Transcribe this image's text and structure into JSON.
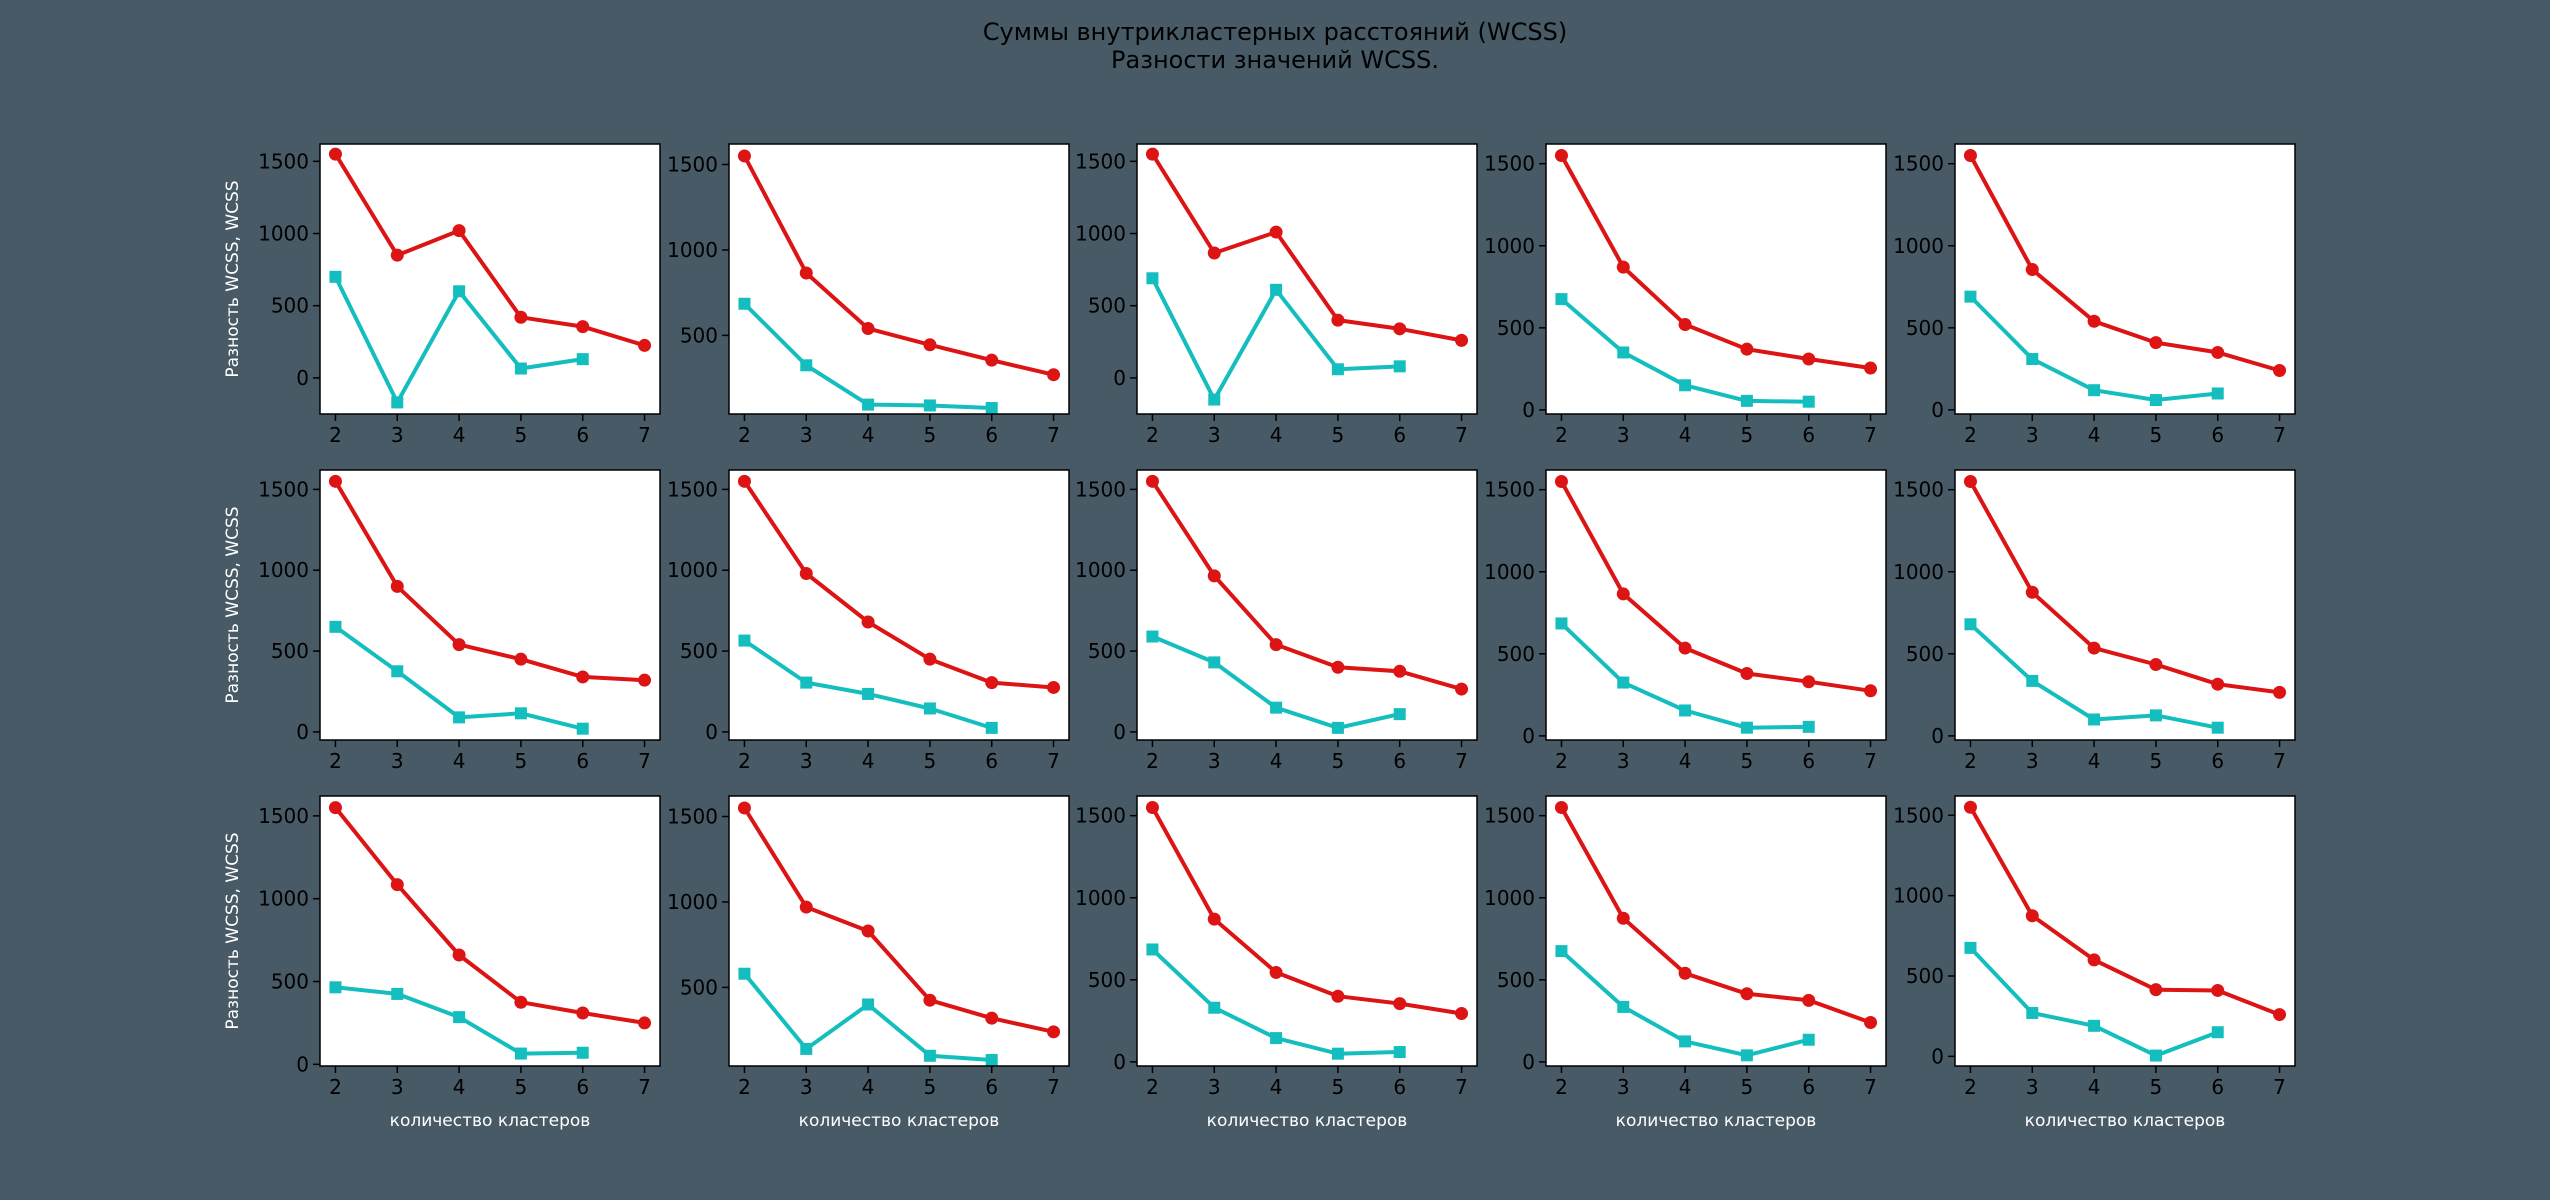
{
  "figure": {
    "title_line1": "Суммы внутрикластерных расстояний (WCSS)",
    "title_line2": "Разности значений WCSS.",
    "ylabel": "Разность WCSS, WCSS",
    "xlabel": "количество кластеров",
    "colors": {
      "background": "#475a66",
      "wcss": "#dc1414",
      "diff": "#14bebe"
    }
  },
  "chart_data": [
    {
      "type": "line",
      "x": [
        2,
        3,
        4,
        5,
        6,
        7
      ],
      "yticks": [
        0,
        500,
        1000,
        1500
      ],
      "ylim": [
        -250,
        1620
      ],
      "series": [
        {
          "values": [
            1550,
            850,
            1020,
            420,
            355,
            225
          ]
        },
        {
          "x": [
            2,
            3,
            4,
            5,
            6
          ],
          "values": [
            700,
            -170,
            600,
            65,
            130
          ]
        }
      ]
    },
    {
      "type": "line",
      "x": [
        2,
        3,
        4,
        5,
        6,
        7
      ],
      "yticks": [
        500,
        1000,
        1500
      ],
      "ylim": [
        40,
        1620
      ],
      "series": [
        {
          "values": [
            1550,
            865,
            540,
            445,
            355,
            270
          ]
        },
        {
          "x": [
            2,
            3,
            4,
            5,
            6
          ],
          "values": [
            685,
            325,
            95,
            90,
            75
          ]
        }
      ]
    },
    {
      "type": "line",
      "x": [
        2,
        3,
        4,
        5,
        6,
        7
      ],
      "yticks": [
        0,
        500,
        1000,
        1500
      ],
      "ylim": [
        -250,
        1620
      ],
      "series": [
        {
          "values": [
            1550,
            865,
            1010,
            400,
            340,
            260
          ]
        },
        {
          "x": [
            2,
            3,
            4,
            5,
            6
          ],
          "values": [
            690,
            -150,
            610,
            60,
            80
          ]
        }
      ]
    },
    {
      "type": "line",
      "x": [
        2,
        3,
        4,
        5,
        6,
        7
      ],
      "yticks": [
        0,
        500,
        1000,
        1500
      ],
      "ylim": [
        -25,
        1620
      ],
      "series": [
        {
          "values": [
            1550,
            870,
            520,
            370,
            310,
            255
          ]
        },
        {
          "x": [
            2,
            3,
            4,
            5,
            6
          ],
          "values": [
            675,
            350,
            150,
            55,
            50
          ]
        }
      ]
    },
    {
      "type": "line",
      "x": [
        2,
        3,
        4,
        5,
        6,
        7
      ],
      "yticks": [
        0,
        500,
        1000,
        1500
      ],
      "ylim": [
        -25,
        1620
      ],
      "series": [
        {
          "values": [
            1550,
            855,
            540,
            410,
            350,
            240
          ]
        },
        {
          "x": [
            2,
            3,
            4,
            5,
            6
          ],
          "values": [
            690,
            310,
            120,
            60,
            100
          ]
        }
      ]
    },
    {
      "type": "line",
      "x": [
        2,
        3,
        4,
        5,
        6,
        7
      ],
      "yticks": [
        0,
        500,
        1000,
        1500
      ],
      "ylim": [
        -50,
        1620
      ],
      "series": [
        {
          "values": [
            1550,
            900,
            540,
            450,
            340,
            320
          ]
        },
        {
          "x": [
            2,
            3,
            4,
            5,
            6
          ],
          "values": [
            650,
            375,
            90,
            115,
            20
          ]
        }
      ]
    },
    {
      "type": "line",
      "x": [
        2,
        3,
        4,
        5,
        6,
        7
      ],
      "yticks": [
        0,
        500,
        1000,
        1500
      ],
      "ylim": [
        -50,
        1620
      ],
      "series": [
        {
          "values": [
            1550,
            980,
            680,
            450,
            305,
            275
          ]
        },
        {
          "x": [
            2,
            3,
            4,
            5,
            6
          ],
          "values": [
            565,
            305,
            235,
            145,
            25
          ]
        }
      ]
    },
    {
      "type": "line",
      "x": [
        2,
        3,
        4,
        5,
        6,
        7
      ],
      "yticks": [
        0,
        500,
        1000,
        1500
      ],
      "ylim": [
        -50,
        1620
      ],
      "series": [
        {
          "values": [
            1550,
            965,
            540,
            400,
            375,
            265
          ]
        },
        {
          "x": [
            2,
            3,
            4,
            5,
            6
          ],
          "values": [
            590,
            430,
            150,
            25,
            110
          ]
        }
      ]
    },
    {
      "type": "line",
      "x": [
        2,
        3,
        4,
        5,
        6,
        7
      ],
      "yticks": [
        0,
        500,
        1000,
        1500
      ],
      "ylim": [
        -25,
        1620
      ],
      "series": [
        {
          "values": [
            1550,
            865,
            535,
            380,
            330,
            275
          ]
        },
        {
          "x": [
            2,
            3,
            4,
            5,
            6
          ],
          "values": [
            685,
            325,
            155,
            50,
            55
          ]
        }
      ]
    },
    {
      "type": "line",
      "x": [
        2,
        3,
        4,
        5,
        6,
        7
      ],
      "yticks": [
        0,
        500,
        1000,
        1500
      ],
      "ylim": [
        -25,
        1620
      ],
      "series": [
        {
          "values": [
            1550,
            875,
            535,
            435,
            315,
            265
          ]
        },
        {
          "x": [
            2,
            3,
            4,
            5,
            6
          ],
          "values": [
            680,
            335,
            100,
            125,
            50
          ]
        }
      ]
    },
    {
      "type": "line",
      "x": [
        2,
        3,
        4,
        5,
        6,
        7
      ],
      "yticks": [
        0,
        500,
        1000,
        1500
      ],
      "ylim": [
        -10,
        1620
      ],
      "series": [
        {
          "values": [
            1550,
            1085,
            660,
            375,
            310,
            250
          ]
        },
        {
          "x": [
            2,
            3,
            4,
            5,
            6
          ],
          "values": [
            465,
            425,
            285,
            65,
            70
          ]
        }
      ]
    },
    {
      "type": "line",
      "x": [
        2,
        3,
        4,
        5,
        6,
        7
      ],
      "yticks": [
        500,
        1000,
        1500
      ],
      "ylim": [
        40,
        1620
      ],
      "series": [
        {
          "values": [
            1550,
            970,
            830,
            425,
            320,
            240
          ]
        },
        {
          "x": [
            2,
            3,
            4,
            5,
            6
          ],
          "values": [
            580,
            140,
            400,
            100,
            75
          ]
        }
      ]
    },
    {
      "type": "line",
      "x": [
        2,
        3,
        4,
        5,
        6,
        7
      ],
      "yticks": [
        0,
        500,
        1000,
        1500
      ],
      "ylim": [
        -25,
        1620
      ],
      "series": [
        {
          "values": [
            1550,
            870,
            545,
            400,
            355,
            295
          ]
        },
        {
          "x": [
            2,
            3,
            4,
            5,
            6
          ],
          "values": [
            685,
            330,
            145,
            50,
            60
          ]
        }
      ]
    },
    {
      "type": "line",
      "x": [
        2,
        3,
        4,
        5,
        6,
        7
      ],
      "yticks": [
        0,
        500,
        1000,
        1500
      ],
      "ylim": [
        -25,
        1620
      ],
      "series": [
        {
          "values": [
            1550,
            875,
            540,
            415,
            375,
            240
          ]
        },
        {
          "x": [
            2,
            3,
            4,
            5,
            6
          ],
          "values": [
            675,
            335,
            125,
            40,
            135
          ]
        }
      ]
    },
    {
      "type": "line",
      "x": [
        2,
        3,
        4,
        5,
        6,
        7
      ],
      "yticks": [
        0,
        500,
        1000,
        1500
      ],
      "ylim": [
        -60,
        1620
      ],
      "series": [
        {
          "values": [
            1550,
            875,
            600,
            415,
            410,
            260
          ]
        },
        {
          "x": [
            2,
            3,
            4,
            5,
            6
          ],
          "values": [
            675,
            270,
            190,
            5,
            150
          ]
        }
      ]
    }
  ]
}
